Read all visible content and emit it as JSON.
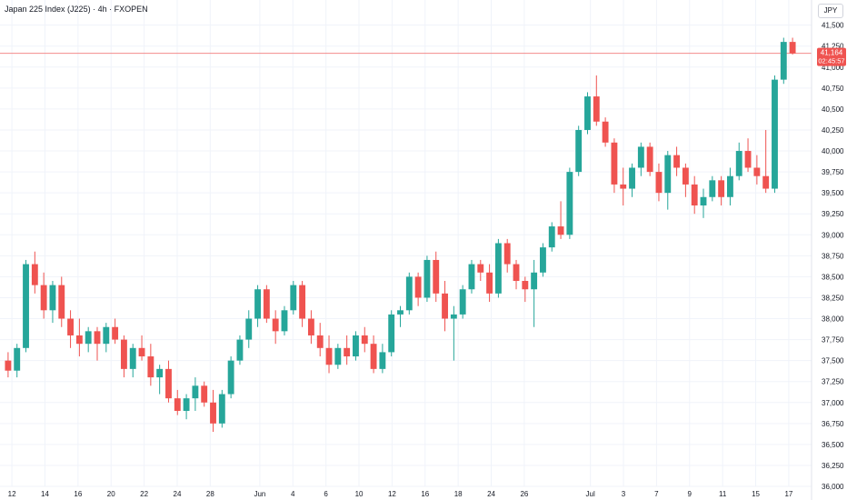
{
  "header": {
    "title": "Japan 225 Index (J225) · 4h · FXOPEN",
    "currency": "JPY"
  },
  "colors": {
    "up": "#26a69a",
    "down": "#ef5350",
    "grid": "#f0f3fa",
    "axis_text": "#131722",
    "price_line": "#f28b8b"
  },
  "chart_data": {
    "type": "candlestick",
    "title": "Japan 225 Index (J225) · 4h · FXOPEN",
    "ylim": [
      36000,
      41800
    ],
    "xlim": [
      0,
      48
    ],
    "grid": true,
    "x_ticks": [
      {
        "label": "12",
        "x": 0.5
      },
      {
        "label": "14",
        "x": 2.5
      },
      {
        "label": "16",
        "x": 4.5
      },
      {
        "label": "20",
        "x": 6.5
      },
      {
        "label": "22",
        "x": 8.5
      },
      {
        "label": "24",
        "x": 10.5
      },
      {
        "label": "28",
        "x": 12.5
      },
      {
        "label": "Jun",
        "x": 15.5
      },
      {
        "label": "4",
        "x": 17.5
      },
      {
        "label": "6",
        "x": 19.5
      },
      {
        "label": "10",
        "x": 21.5
      },
      {
        "label": "12",
        "x": 23.5
      },
      {
        "label": "16",
        "x": 25.5
      },
      {
        "label": "18",
        "x": 27.5
      },
      {
        "label": "24",
        "x": 29.5
      },
      {
        "label": "26",
        "x": 31.5
      },
      {
        "label": "Jul",
        "x": 35.5
      },
      {
        "label": "3",
        "x": 37.5
      },
      {
        "label": "7",
        "x": 39.5
      },
      {
        "label": "9",
        "x": 41.5
      },
      {
        "label": "11",
        "x": 43.5
      },
      {
        "label": "15",
        "x": 45.5
      },
      {
        "label": "17",
        "x": 47.5
      }
    ],
    "y_ticks": [
      36000,
      36250,
      36500,
      36750,
      37000,
      37250,
      37500,
      37750,
      38000,
      38250,
      38500,
      38750,
      39000,
      39250,
      39500,
      39750,
      40000,
      40250,
      40500,
      40750,
      41000,
      41250,
      41500
    ],
    "y_tick_labels": [
      "36,000",
      "36,250",
      "36,500",
      "36,750",
      "37,000",
      "37,250",
      "37,500",
      "37,750",
      "38,000",
      "38,250",
      "38,500",
      "38,750",
      "39,000",
      "39,250",
      "39,500",
      "39,750",
      "40,000",
      "40,250",
      "40,500",
      "40,750",
      "41,000",
      "41,250",
      "41,500"
    ],
    "last_price": 41164,
    "last_price_label": "41,164",
    "countdown_label": "02:45:57",
    "candles": [
      [
        37500,
        37600,
        37300,
        37380
      ],
      [
        37380,
        37700,
        37300,
        37650
      ],
      [
        37650,
        38700,
        37600,
        38650
      ],
      [
        38650,
        38800,
        38300,
        38400
      ],
      [
        38400,
        38550,
        38000,
        38100
      ],
      [
        38100,
        38450,
        37950,
        38400
      ],
      [
        38400,
        38500,
        37900,
        38000
      ],
      [
        38000,
        38100,
        37650,
        37800
      ],
      [
        37800,
        38000,
        37550,
        37700
      ],
      [
        37700,
        37900,
        37600,
        37850
      ],
      [
        37850,
        37900,
        37500,
        37700
      ],
      [
        37700,
        37950,
        37600,
        37900
      ],
      [
        37900,
        38000,
        37700,
        37750
      ],
      [
        37750,
        37800,
        37300,
        37400
      ],
      [
        37400,
        37700,
        37300,
        37650
      ],
      [
        37650,
        37800,
        37500,
        37550
      ],
      [
        37550,
        37700,
        37200,
        37300
      ],
      [
        37300,
        37450,
        37100,
        37400
      ],
      [
        37400,
        37500,
        37000,
        37050
      ],
      [
        37050,
        37150,
        36850,
        36900
      ],
      [
        36900,
        37100,
        36800,
        37050
      ],
      [
        37050,
        37300,
        36900,
        37200
      ],
      [
        37200,
        37250,
        36950,
        37000
      ],
      [
        37000,
        37150,
        36650,
        36750
      ],
      [
        36750,
        37150,
        36700,
        37100
      ],
      [
        37100,
        37550,
        37050,
        37500
      ],
      [
        37500,
        37800,
        37450,
        37750
      ],
      [
        37750,
        38100,
        37650,
        38000
      ],
      [
        38000,
        38400,
        37900,
        38350
      ],
      [
        38350,
        38400,
        37950,
        38000
      ],
      [
        38000,
        38100,
        37700,
        37850
      ],
      [
        37850,
        38150,
        37800,
        38100
      ],
      [
        38100,
        38450,
        38050,
        38400
      ],
      [
        38400,
        38450,
        37900,
        38000
      ],
      [
        38000,
        38100,
        37700,
        37800
      ],
      [
        37800,
        37950,
        37550,
        37650
      ],
      [
        37650,
        37800,
        37350,
        37450
      ],
      [
        37450,
        37700,
        37400,
        37650
      ],
      [
        37650,
        37800,
        37450,
        37550
      ],
      [
        37550,
        37850,
        37500,
        37800
      ],
      [
        37800,
        37900,
        37600,
        37700
      ],
      [
        37700,
        37800,
        37350,
        37400
      ],
      [
        37400,
        37700,
        37350,
        37600
      ]
    ],
    "candles_b": [
      [
        37600,
        38100,
        37550,
        38050
      ],
      [
        38050,
        38150,
        37900,
        38100
      ],
      [
        38100,
        38550,
        38050,
        38500
      ],
      [
        38500,
        38550,
        38150,
        38250
      ],
      [
        38250,
        38750,
        38200,
        38700
      ],
      [
        38700,
        38800,
        38200,
        38300
      ],
      [
        38300,
        38450,
        37850,
        38000
      ],
      [
        38000,
        38150,
        37500,
        38050
      ],
      [
        38050,
        38400,
        38000,
        38350
      ],
      [
        38350,
        38700,
        38300,
        38650
      ],
      [
        38650,
        38700,
        38450,
        38550
      ],
      [
        38550,
        38650,
        38200,
        38300
      ],
      [
        38300,
        38950,
        38250,
        38900
      ],
      [
        38900,
        38950,
        38550,
        38650
      ],
      [
        38650,
        38700,
        38350,
        38450
      ],
      [
        38450,
        38500,
        38200,
        38350
      ],
      [
        38350,
        38700,
        37900,
        38550
      ],
      [
        38550,
        38900,
        38500,
        38850
      ],
      [
        38850,
        39150,
        38800,
        39100
      ],
      [
        39100,
        39400,
        38950,
        39000
      ],
      [
        39000,
        39800,
        38950,
        39750
      ],
      [
        39750,
        40300,
        39700,
        40250
      ],
      [
        40250,
        40700,
        40200,
        40650
      ],
      [
        40650,
        40900,
        40300,
        40350
      ],
      [
        40350,
        40400,
        40050,
        40100
      ],
      [
        40100,
        40150,
        39500,
        39600
      ],
      [
        39600,
        39800,
        39350,
        39550
      ],
      [
        39550,
        39850,
        39450,
        39800
      ],
      [
        39800,
        40100,
        39700,
        40050
      ],
      [
        40050,
        40100,
        39700,
        39750
      ],
      [
        39750,
        39850,
        39400,
        39500
      ],
      [
        39500,
        40000,
        39300,
        39950
      ],
      [
        39950,
        40050,
        39700,
        39800
      ],
      [
        39800,
        39850,
        39450,
        39600
      ],
      [
        39600,
        39700,
        39250,
        39350
      ],
      [
        39350,
        39550,
        39200,
        39450
      ],
      [
        39450,
        39700,
        39400,
        39650
      ],
      [
        39650,
        39700,
        39350,
        39450
      ],
      [
        39450,
        39800,
        39350,
        39700
      ],
      [
        39700,
        40100,
        39650,
        40000
      ],
      [
        40000,
        40150,
        39750,
        39800
      ],
      [
        39800,
        39950,
        39600,
        39700
      ],
      [
        39700,
        40250,
        39500,
        39550
      ],
      [
        39550,
        40900,
        39500,
        40850
      ],
      [
        40850,
        41350,
        40800,
        41300
      ],
      [
        41300,
        41350,
        41150,
        41164
      ]
    ]
  }
}
